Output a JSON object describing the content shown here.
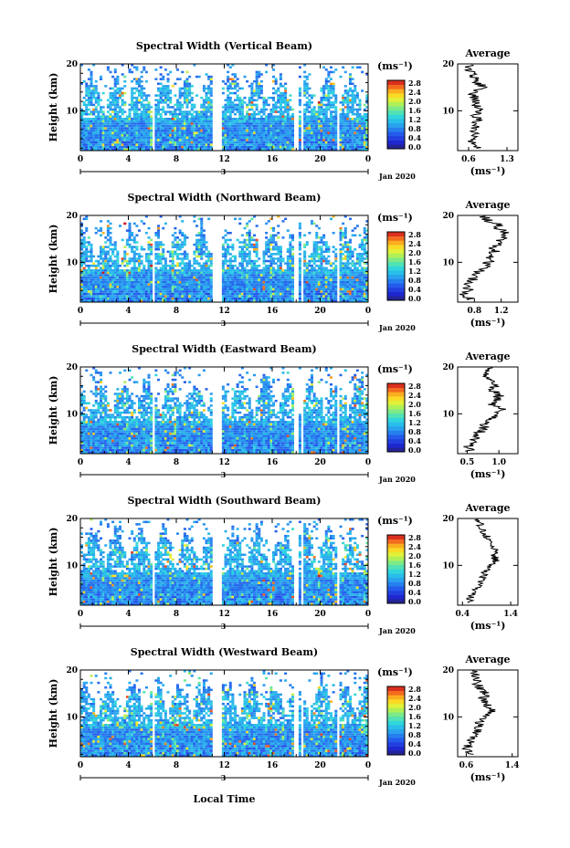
{
  "figure": {
    "xlabel": "Local Time",
    "date_label": "Jan 2020",
    "day_label": "3",
    "ylabel": "Height (km)",
    "cbar_unit": "(ms⁻¹)",
    "avg_title": "Average",
    "avg_xlabel": "(ms⁻¹)"
  },
  "chart_data": [
    {
      "type": "heatmap",
      "title": "Spectral Width (Vertical Beam)",
      "xlabel": "Local Time",
      "ylabel": "Height (km)",
      "x_ticks": [
        "0",
        "4",
        "8",
        "12",
        "16",
        "20",
        "0"
      ],
      "y_ticks": [
        "10",
        "20"
      ],
      "xlim": [
        0,
        24
      ],
      "ylim": [
        1.5,
        20
      ],
      "colorbar": {
        "unit": "(ms⁻¹)",
        "ticks": [
          "0.0",
          "0.4",
          "0.8",
          "1.2",
          "1.6",
          "2.0",
          "2.4",
          "2.8"
        ],
        "range": [
          0,
          3.0
        ]
      },
      "gaps_hours": [
        [
          5.9,
          6.15
        ],
        [
          10.95,
          11.75
        ],
        [
          17.75,
          18.1
        ],
        [
          18.3,
          18.6
        ],
        [
          21.35,
          21.6
        ]
      ],
      "average": {
        "title": "Average",
        "xlabel": "(ms⁻¹)",
        "x_ticks": [
          "0.6",
          "1.3"
        ],
        "xlim": [
          0.4,
          1.5
        ],
        "heights": [
          2,
          3,
          4,
          5,
          6,
          7,
          8,
          9,
          10,
          11,
          12,
          13,
          14,
          15,
          16,
          17,
          18,
          19,
          20
        ],
        "values": [
          0.75,
          0.7,
          0.65,
          0.7,
          0.68,
          0.72,
          0.78,
          0.7,
          0.8,
          0.75,
          0.72,
          0.7,
          0.68,
          0.9,
          0.75,
          0.7,
          0.65,
          0.6,
          0.6
        ]
      }
    },
    {
      "type": "heatmap",
      "title": "Spectral Width (Northward Beam)",
      "xlabel": "Local Time",
      "ylabel": "Height (km)",
      "x_ticks": [
        "0",
        "4",
        "8",
        "12",
        "16",
        "20",
        "0"
      ],
      "y_ticks": [
        "10",
        "20"
      ],
      "xlim": [
        0,
        24
      ],
      "ylim": [
        1.5,
        20
      ],
      "colorbar": {
        "unit": "(ms⁻¹)",
        "ticks": [
          "0.0",
          "0.4",
          "0.8",
          "1.2",
          "1.6",
          "2.0",
          "2.4",
          "2.8"
        ],
        "range": [
          0,
          3.0
        ]
      },
      "gaps_hours": [
        [
          5.9,
          6.15
        ],
        [
          10.95,
          11.75
        ],
        [
          17.75,
          18.1
        ],
        [
          18.3,
          18.6
        ],
        [
          21.35,
          21.6
        ]
      ],
      "average": {
        "title": "Average",
        "xlabel": "(ms⁻¹)",
        "x_ticks": [
          "0.8",
          "1.2"
        ],
        "xlim": [
          0.55,
          1.45
        ],
        "heights": [
          2,
          3,
          4,
          5,
          6,
          7,
          8,
          9,
          10,
          11,
          12,
          13,
          14,
          15,
          16,
          17,
          18,
          19,
          20
        ],
        "values": [
          0.75,
          0.65,
          0.7,
          0.72,
          0.75,
          0.8,
          0.85,
          0.95,
          1.0,
          1.05,
          1.1,
          1.08,
          1.15,
          1.2,
          1.25,
          1.2,
          1.15,
          1.0,
          0.95
        ]
      }
    },
    {
      "type": "heatmap",
      "title": "Spectral Width (Eastward Beam)",
      "xlabel": "Local Time",
      "ylabel": "Height (km)",
      "x_ticks": [
        "0",
        "4",
        "8",
        "12",
        "16",
        "20",
        "0"
      ],
      "y_ticks": [
        "10",
        "20"
      ],
      "xlim": [
        0,
        24
      ],
      "ylim": [
        1.5,
        20
      ],
      "colorbar": {
        "unit": "(ms⁻¹)",
        "ticks": [
          "0.0",
          "0.4",
          "0.8",
          "1.2",
          "1.6",
          "2.0",
          "2.4",
          "2.8"
        ],
        "range": [
          0,
          3.0
        ]
      },
      "gaps_hours": [
        [
          5.9,
          6.15
        ],
        [
          10.95,
          11.75
        ],
        [
          17.75,
          18.1
        ],
        [
          18.3,
          18.6
        ],
        [
          21.35,
          21.6
        ]
      ],
      "average": {
        "title": "Average",
        "xlabel": "(ms⁻¹)",
        "x_ticks": [
          "0.5",
          "1.0"
        ],
        "xlim": [
          0.35,
          1.3
        ],
        "heights": [
          2,
          3,
          4,
          5,
          6,
          7,
          8,
          9,
          10,
          11,
          12,
          13,
          14,
          15,
          16,
          17,
          18,
          19,
          20
        ],
        "values": [
          0.55,
          0.5,
          0.6,
          0.65,
          0.7,
          0.75,
          0.8,
          0.9,
          1.0,
          1.05,
          0.9,
          0.95,
          1.0,
          0.9,
          0.95,
          0.85,
          0.8,
          0.85,
          0.9
        ]
      }
    },
    {
      "type": "heatmap",
      "title": "Spectral Width (Southward Beam)",
      "xlabel": "Local Time",
      "ylabel": "Height (km)",
      "x_ticks": [
        "0",
        "4",
        "8",
        "12",
        "16",
        "20",
        "0"
      ],
      "y_ticks": [
        "10",
        "20"
      ],
      "xlim": [
        0,
        24
      ],
      "ylim": [
        1.5,
        20
      ],
      "colorbar": {
        "unit": "(ms⁻¹)",
        "ticks": [
          "0.0",
          "0.4",
          "0.8",
          "1.2",
          "1.6",
          "2.0",
          "2.4",
          "2.8"
        ],
        "range": [
          0,
          3.0
        ]
      },
      "gaps_hours": [
        [
          5.9,
          6.15
        ],
        [
          10.95,
          11.75
        ],
        [
          17.75,
          18.1
        ],
        [
          18.3,
          18.6
        ],
        [
          21.35,
          21.6
        ]
      ],
      "average": {
        "title": "Average",
        "xlabel": "(ms⁻¹)",
        "x_ticks": [
          "0.4",
          "1.4"
        ],
        "xlim": [
          0.3,
          1.55
        ],
        "heights": [
          2,
          3,
          4,
          5,
          6,
          7,
          8,
          9,
          10,
          11,
          12,
          13,
          14,
          15,
          16,
          17,
          18,
          19,
          20
        ],
        "values": [
          0.6,
          0.55,
          0.6,
          0.7,
          0.75,
          0.8,
          0.85,
          0.9,
          1.0,
          1.1,
          1.05,
          1.1,
          1.0,
          0.95,
          0.9,
          0.85,
          0.8,
          0.75,
          0.7
        ]
      }
    },
    {
      "type": "heatmap",
      "title": "Spectral Width (Westward Beam)",
      "xlabel": "Local Time",
      "ylabel": "Height (km)",
      "x_ticks": [
        "0",
        "4",
        "8",
        "12",
        "16",
        "20",
        "0"
      ],
      "y_ticks": [
        "10",
        "20"
      ],
      "xlim": [
        0,
        24
      ],
      "ylim": [
        1.5,
        20
      ],
      "colorbar": {
        "unit": "(ms⁻¹)",
        "ticks": [
          "0.0",
          "0.4",
          "0.8",
          "1.2",
          "1.6",
          "2.0",
          "2.4",
          "2.8"
        ],
        "range": [
          0,
          3.0
        ]
      },
      "gaps_hours": [
        [
          5.9,
          6.15
        ],
        [
          10.95,
          11.75
        ],
        [
          17.75,
          18.1
        ],
        [
          18.3,
          18.6
        ],
        [
          21.35,
          21.6
        ]
      ],
      "average": {
        "title": "Average",
        "xlabel": "(ms⁻¹)",
        "x_ticks": [
          "0.6",
          "1.4"
        ],
        "xlim": [
          0.45,
          1.5
        ],
        "heights": [
          2,
          3,
          4,
          5,
          6,
          7,
          8,
          9,
          10,
          11,
          12,
          13,
          14,
          15,
          16,
          17,
          18,
          19,
          20
        ],
        "values": [
          0.65,
          0.6,
          0.65,
          0.7,
          0.75,
          0.8,
          0.8,
          0.85,
          0.95,
          1.05,
          1.0,
          0.95,
          0.9,
          0.95,
          0.85,
          0.8,
          0.8,
          0.75,
          0.7
        ]
      }
    }
  ]
}
